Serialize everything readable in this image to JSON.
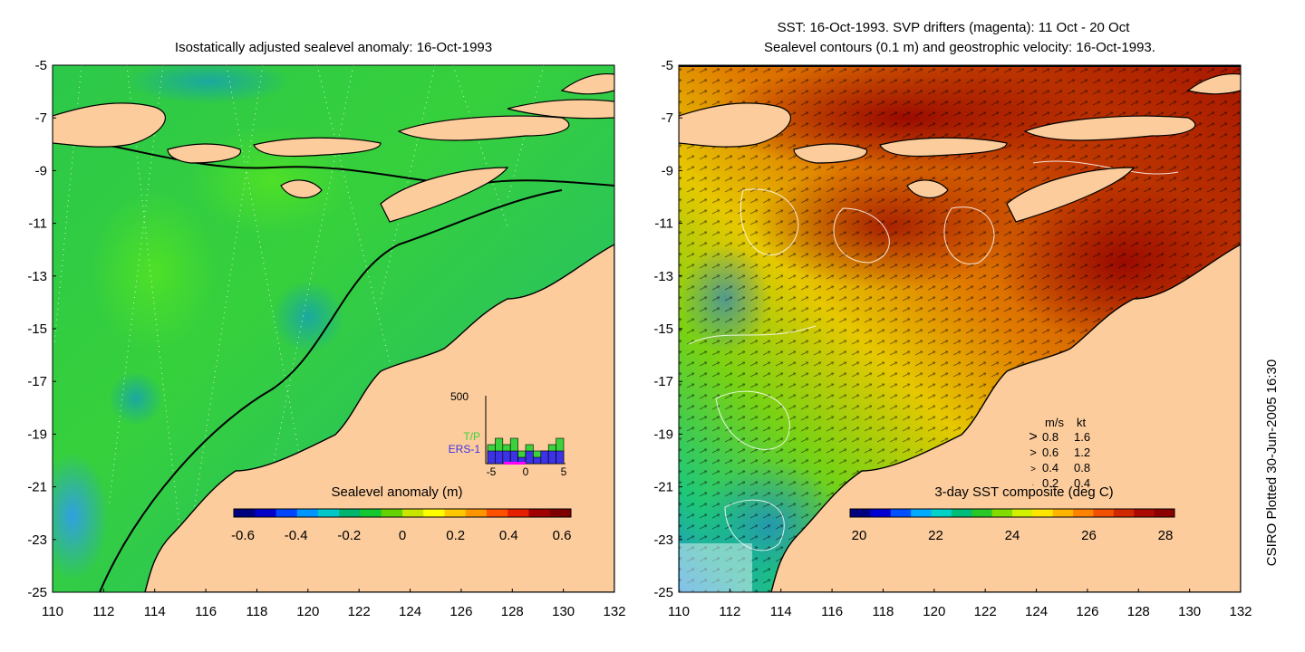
{
  "left_panel": {
    "title": "Isostatically adjusted sealevel anomaly: 16-Oct-1993",
    "colorbar": {
      "label": "Sealevel anomaly (m)",
      "ticks": [
        "-0.6",
        "-0.4",
        "-0.2",
        "0",
        "0.2",
        "0.4",
        "0.6"
      ],
      "colors": [
        "#00007f",
        "#0000c8",
        "#0046ff",
        "#0096ff",
        "#00c8c8",
        "#00b46e",
        "#14c832",
        "#64d200",
        "#c8e600",
        "#ffff00",
        "#ffc800",
        "#ff9600",
        "#ff5000",
        "#e61e00",
        "#a00000",
        "#7f0000"
      ]
    },
    "inset": {
      "y_label": "500",
      "x_ticks": [
        "-5",
        "0",
        "5"
      ],
      "legend": [
        {
          "name": "T/P",
          "color": "#3cd23c"
        },
        {
          "name": "ERS-1",
          "color": "#3c32e6"
        }
      ],
      "tp_values": [
        3,
        4,
        3,
        4,
        2,
        3,
        2,
        2,
        3,
        4
      ],
      "ers_values": [
        2,
        2,
        2,
        2,
        1,
        2,
        1,
        2,
        2,
        2
      ]
    }
  },
  "right_panel": {
    "title_line1": "SST: 16-Oct-1993. SVP drifters (magenta): 11 Oct - 20 Oct",
    "title_line2": "Sealevel contours (0.1 m) and geostrophic velocity: 16-Oct-1993.",
    "colorbar": {
      "label": "3-day SST composite (deg C)",
      "ticks": [
        "20",
        "22",
        "24",
        "26",
        "28"
      ],
      "colors": [
        "#00007f",
        "#0000d2",
        "#0050ff",
        "#00aaff",
        "#00d2c8",
        "#00be78",
        "#28c828",
        "#82dc00",
        "#d2f000",
        "#ffe600",
        "#ffb400",
        "#ff8200",
        "#f05000",
        "#d22800",
        "#aa0a00",
        "#8c0000"
      ]
    },
    "speed_legend": {
      "header_ms": "m/s",
      "header_kt": "kt",
      "rows": [
        {
          "ms": "0.8",
          "kt": "1.6",
          "arrow": ">"
        },
        {
          "ms": "0.6",
          "kt": "1.2",
          "arrow": ">"
        },
        {
          "ms": "0.4",
          "kt": "0.8",
          "arrow": ">"
        },
        {
          "ms": "0.2",
          "kt": "0.4",
          "arrow": "·"
        }
      ]
    }
  },
  "axes": {
    "y_ticks": [
      "-5",
      "-7",
      "-9",
      "-11",
      "-13",
      "-15",
      "-17",
      "-19",
      "-21",
      "-23",
      "-25"
    ],
    "x_ticks": [
      "110",
      "112",
      "114",
      "116",
      "118",
      "120",
      "122",
      "124",
      "126",
      "128",
      "130",
      "132"
    ],
    "lon_range": [
      110,
      132
    ],
    "lat_range": [
      -25,
      -5
    ]
  },
  "credit": "CSIRO Plotted 30-Jun-2005 16:30",
  "colors": {
    "land": "#fccc9c",
    "ocean_left": "#1ec86e",
    "ocean_left_light": "#3cd23c",
    "sst_warm": "#a01e00",
    "sst_mid": "#e07800",
    "sst_cool": "#28c864"
  }
}
